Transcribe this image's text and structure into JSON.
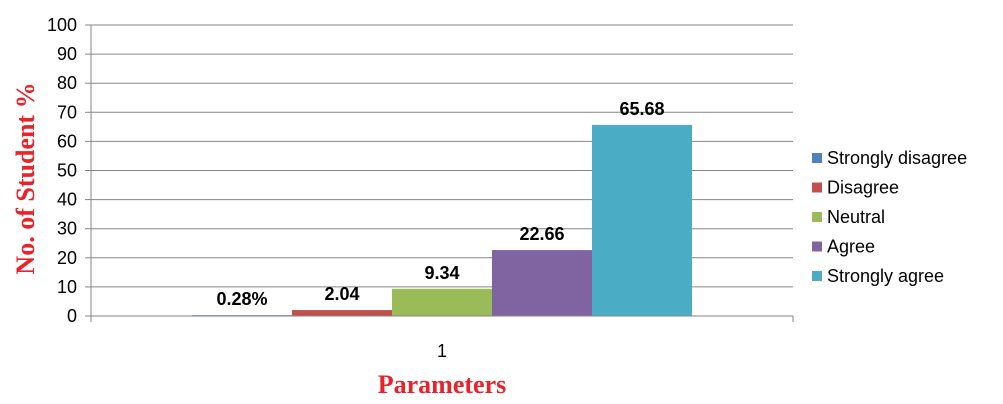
{
  "chart_data": {
    "type": "bar",
    "categories": [
      "1"
    ],
    "series": [
      {
        "name": "Strongly disagree",
        "values": [
          0.28
        ],
        "label": "0.28%",
        "color": "#4f81bd"
      },
      {
        "name": "Disagree",
        "values": [
          2.04
        ],
        "label": "2.04",
        "color": "#c0504d"
      },
      {
        "name": "Neutral",
        "values": [
          9.34
        ],
        "label": "9.34",
        "color": "#9bbb59"
      },
      {
        "name": "Agree",
        "values": [
          22.66
        ],
        "label": "22.66",
        "color": "#8064a2"
      },
      {
        "name": "Strongly agree",
        "values": [
          65.68
        ],
        "label": "65.68",
        "color": "#4bacc6"
      }
    ],
    "xlabel": "Parameters",
    "ylabel": "No. of Student %",
    "ylim": [
      0,
      100
    ],
    "yticks": [
      0,
      10,
      20,
      30,
      40,
      50,
      60,
      70,
      80,
      90,
      100
    ],
    "grid": true,
    "legend": "right",
    "axis_title_color": "#e8232a"
  }
}
